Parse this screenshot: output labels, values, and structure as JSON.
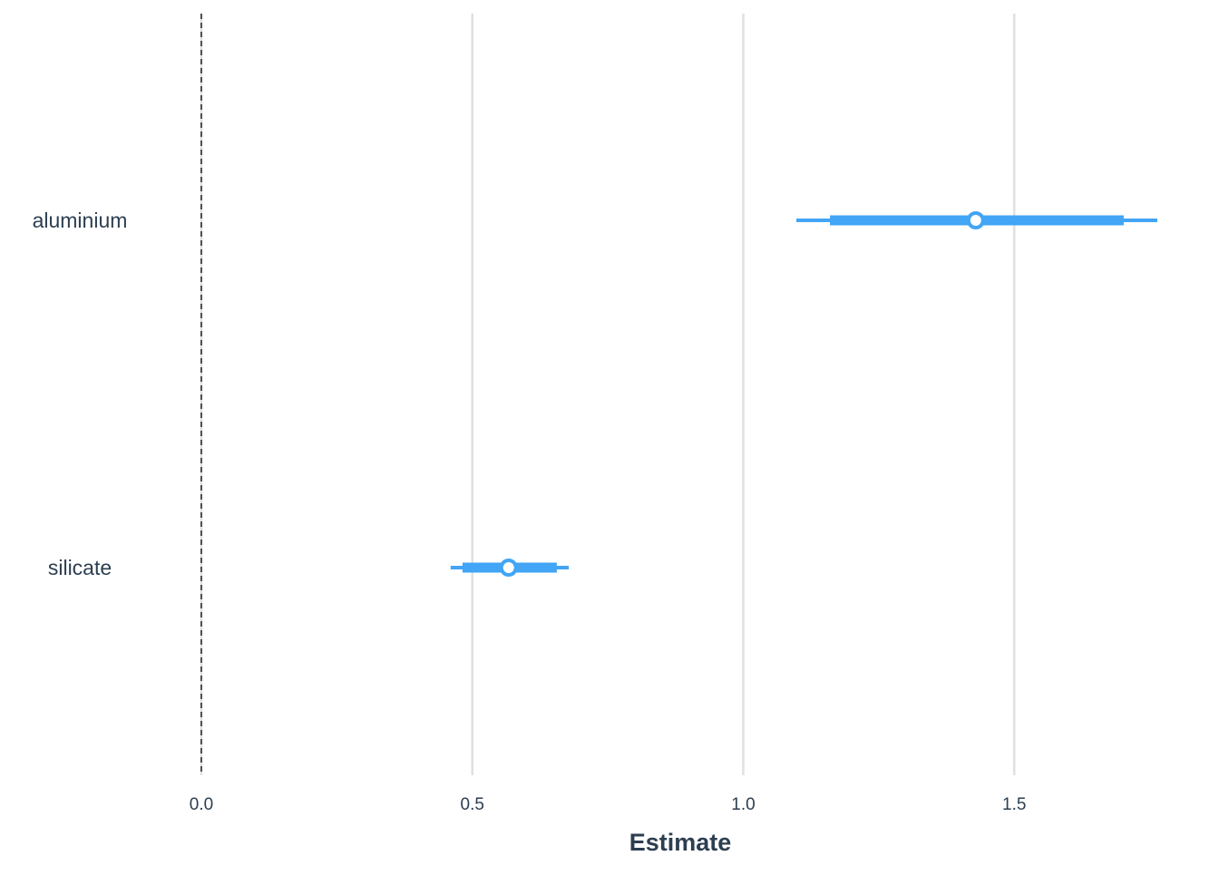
{
  "chart_data": {
    "type": "forest",
    "x_label": "Estimate",
    "categories": [
      "aluminium",
      "silicate"
    ],
    "values": [
      1.429,
      0.567
    ],
    "inner_low": [
      1.16,
      0.482
    ],
    "inner_high": [
      1.702,
      0.656
    ],
    "outer_low": [
      1.098,
      0.46
    ],
    "outer_high": [
      1.764,
      0.678
    ],
    "color": "#42a5f5",
    "reference_line": 0,
    "xlim": [
      -0.09,
      1.79
    ],
    "xticks": [
      {
        "value": 0,
        "label": "0.0"
      },
      0.5,
      {
        "value": 1,
        "label": "1.0"
      },
      1.5
    ],
    "grid": true
  }
}
